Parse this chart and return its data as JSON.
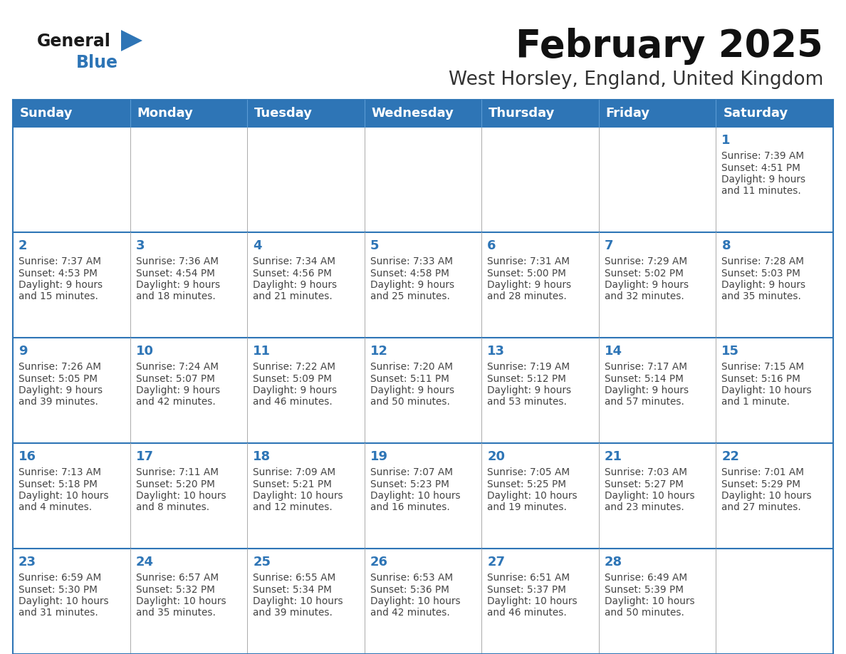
{
  "title": "February 2025",
  "subtitle": "West Horsley, England, United Kingdom",
  "header_bg": "#2E75B6",
  "header_text_color": "#FFFFFF",
  "border_color": "#2E75B6",
  "days_of_week": [
    "Sunday",
    "Monday",
    "Tuesday",
    "Wednesday",
    "Thursday",
    "Friday",
    "Saturday"
  ],
  "day_number_color": "#2E75B6",
  "info_text_color": "#444444",
  "logo_general_color": "#1a1a1a",
  "logo_blue_color": "#2E75B6",
  "calendar_data": [
    [
      null,
      null,
      null,
      null,
      null,
      null,
      {
        "day": "1",
        "sunrise": "7:39 AM",
        "sunset": "4:51 PM",
        "daylight1": "9 hours",
        "daylight2": "and 11 minutes."
      }
    ],
    [
      {
        "day": "2",
        "sunrise": "7:37 AM",
        "sunset": "4:53 PM",
        "daylight1": "9 hours",
        "daylight2": "and 15 minutes."
      },
      {
        "day": "3",
        "sunrise": "7:36 AM",
        "sunset": "4:54 PM",
        "daylight1": "9 hours",
        "daylight2": "and 18 minutes."
      },
      {
        "day": "4",
        "sunrise": "7:34 AM",
        "sunset": "4:56 PM",
        "daylight1": "9 hours",
        "daylight2": "and 21 minutes."
      },
      {
        "day": "5",
        "sunrise": "7:33 AM",
        "sunset": "4:58 PM",
        "daylight1": "9 hours",
        "daylight2": "and 25 minutes."
      },
      {
        "day": "6",
        "sunrise": "7:31 AM",
        "sunset": "5:00 PM",
        "daylight1": "9 hours",
        "daylight2": "and 28 minutes."
      },
      {
        "day": "7",
        "sunrise": "7:29 AM",
        "sunset": "5:02 PM",
        "daylight1": "9 hours",
        "daylight2": "and 32 minutes."
      },
      {
        "day": "8",
        "sunrise": "7:28 AM",
        "sunset": "5:03 PM",
        "daylight1": "9 hours",
        "daylight2": "and 35 minutes."
      }
    ],
    [
      {
        "day": "9",
        "sunrise": "7:26 AM",
        "sunset": "5:05 PM",
        "daylight1": "9 hours",
        "daylight2": "and 39 minutes."
      },
      {
        "day": "10",
        "sunrise": "7:24 AM",
        "sunset": "5:07 PM",
        "daylight1": "9 hours",
        "daylight2": "and 42 minutes."
      },
      {
        "day": "11",
        "sunrise": "7:22 AM",
        "sunset": "5:09 PM",
        "daylight1": "9 hours",
        "daylight2": "and 46 minutes."
      },
      {
        "day": "12",
        "sunrise": "7:20 AM",
        "sunset": "5:11 PM",
        "daylight1": "9 hours",
        "daylight2": "and 50 minutes."
      },
      {
        "day": "13",
        "sunrise": "7:19 AM",
        "sunset": "5:12 PM",
        "daylight1": "9 hours",
        "daylight2": "and 53 minutes."
      },
      {
        "day": "14",
        "sunrise": "7:17 AM",
        "sunset": "5:14 PM",
        "daylight1": "9 hours",
        "daylight2": "and 57 minutes."
      },
      {
        "day": "15",
        "sunrise": "7:15 AM",
        "sunset": "5:16 PM",
        "daylight1": "10 hours",
        "daylight2": "and 1 minute."
      }
    ],
    [
      {
        "day": "16",
        "sunrise": "7:13 AM",
        "sunset": "5:18 PM",
        "daylight1": "10 hours",
        "daylight2": "and 4 minutes."
      },
      {
        "day": "17",
        "sunrise": "7:11 AM",
        "sunset": "5:20 PM",
        "daylight1": "10 hours",
        "daylight2": "and 8 minutes."
      },
      {
        "day": "18",
        "sunrise": "7:09 AM",
        "sunset": "5:21 PM",
        "daylight1": "10 hours",
        "daylight2": "and 12 minutes."
      },
      {
        "day": "19",
        "sunrise": "7:07 AM",
        "sunset": "5:23 PM",
        "daylight1": "10 hours",
        "daylight2": "and 16 minutes."
      },
      {
        "day": "20",
        "sunrise": "7:05 AM",
        "sunset": "5:25 PM",
        "daylight1": "10 hours",
        "daylight2": "and 19 minutes."
      },
      {
        "day": "21",
        "sunrise": "7:03 AM",
        "sunset": "5:27 PM",
        "daylight1": "10 hours",
        "daylight2": "and 23 minutes."
      },
      {
        "day": "22",
        "sunrise": "7:01 AM",
        "sunset": "5:29 PM",
        "daylight1": "10 hours",
        "daylight2": "and 27 minutes."
      }
    ],
    [
      {
        "day": "23",
        "sunrise": "6:59 AM",
        "sunset": "5:30 PM",
        "daylight1": "10 hours",
        "daylight2": "and 31 minutes."
      },
      {
        "day": "24",
        "sunrise": "6:57 AM",
        "sunset": "5:32 PM",
        "daylight1": "10 hours",
        "daylight2": "and 35 minutes."
      },
      {
        "day": "25",
        "sunrise": "6:55 AM",
        "sunset": "5:34 PM",
        "daylight1": "10 hours",
        "daylight2": "and 39 minutes."
      },
      {
        "day": "26",
        "sunrise": "6:53 AM",
        "sunset": "5:36 PM",
        "daylight1": "10 hours",
        "daylight2": "and 42 minutes."
      },
      {
        "day": "27",
        "sunrise": "6:51 AM",
        "sunset": "5:37 PM",
        "daylight1": "10 hours",
        "daylight2": "and 46 minutes."
      },
      {
        "day": "28",
        "sunrise": "6:49 AM",
        "sunset": "5:39 PM",
        "daylight1": "10 hours",
        "daylight2": "and 50 minutes."
      },
      null
    ]
  ],
  "figwidth": 11.88,
  "figheight": 9.18,
  "dpi": 100
}
